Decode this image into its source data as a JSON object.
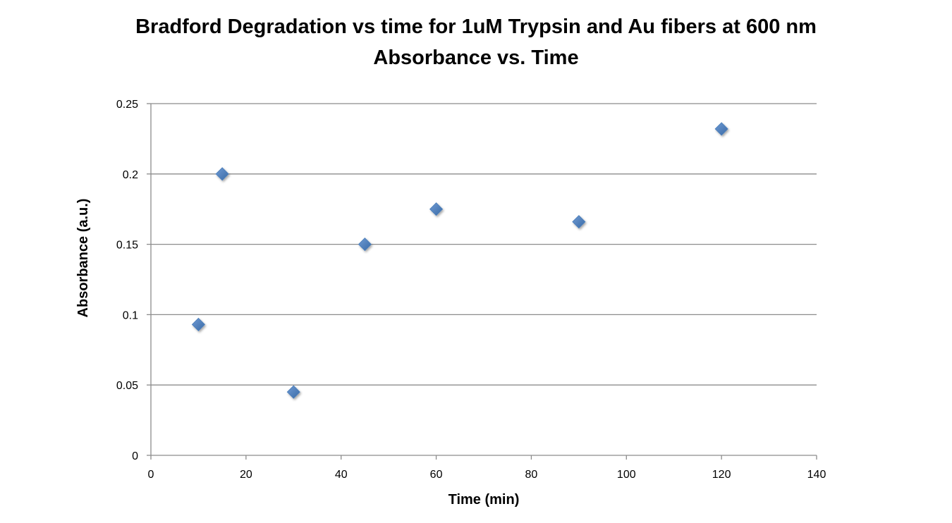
{
  "chart_data": {
    "type": "scatter",
    "title": "Bradford Degradation vs time for 1uM Trypsin and Au fibers at 600 nm",
    "subtitle": "Absorbance vs. Time",
    "xlabel": "Time (min)",
    "ylabel": "Absorbance (a.u.)",
    "xlim": [
      0,
      140
    ],
    "ylim": [
      0,
      0.25
    ],
    "xticks": [
      "0",
      "20",
      "40",
      "60",
      "80",
      "100",
      "120",
      "140"
    ],
    "yticks": [
      "0",
      "0.05",
      "0.1",
      "0.15",
      "0.2",
      "0.25"
    ],
    "grid": "horizontal",
    "legend": "none",
    "marker_color": "#4A7EBB",
    "points": [
      {
        "x": 10,
        "y": 0.093
      },
      {
        "x": 15,
        "y": 0.2
      },
      {
        "x": 30,
        "y": 0.045
      },
      {
        "x": 45,
        "y": 0.15
      },
      {
        "x": 60,
        "y": 0.175
      },
      {
        "x": 90,
        "y": 0.166
      },
      {
        "x": 120,
        "y": 0.232
      }
    ]
  }
}
